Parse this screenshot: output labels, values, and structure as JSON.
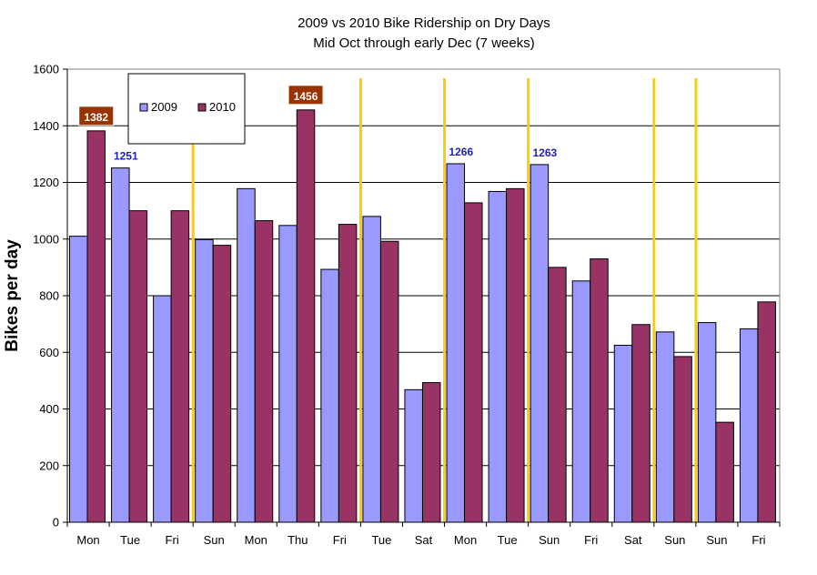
{
  "chart_data": {
    "type": "bar",
    "title": "2009 vs 2010 Bike Ridership on Dry Days",
    "subtitle": "Mid Oct through early Dec (7 weeks)",
    "xlabel": "",
    "ylabel": "Bikes per day",
    "ylim": [
      0,
      1600
    ],
    "yticks": [
      "0",
      "200",
      "400",
      "600",
      "800",
      "1000",
      "1200",
      "1400",
      "1600"
    ],
    "grid": true,
    "legend_position": "top-left",
    "categories": [
      "Mon",
      "Tue",
      "Fri",
      "Sun",
      "Mon",
      "Thu",
      "Fri",
      "Tue",
      "Sat",
      "Mon",
      "Tue",
      "Sun",
      "Fri",
      "Sat",
      "Sun",
      "Sun",
      "Fri"
    ],
    "series": [
      {
        "name": "2009",
        "color": "#9999ff",
        "values": [
          1010,
          1251,
          800,
          998,
          1178,
          1048,
          893,
          1080,
          468,
          1266,
          1168,
          1263,
          852,
          625,
          672,
          705,
          683
        ]
      },
      {
        "name": "2010",
        "color": "#993366",
        "values": [
          1382,
          1100,
          1100,
          978,
          1065,
          1456,
          1052,
          992,
          493,
          1128,
          1178,
          900,
          930,
          698,
          585,
          353,
          778
        ]
      }
    ],
    "week_separators_after_index": [
      2,
      6,
      8,
      10,
      13,
      14
    ],
    "separator_color": "#ffcc00",
    "annotations": [
      {
        "text": "1382",
        "category_index": 0,
        "series": 1,
        "style": "box",
        "box_color": "#993300"
      },
      {
        "text": "1251",
        "category_index": 1,
        "series": 0,
        "style": "text",
        "text_color": "#1f1fb4"
      },
      {
        "text": "1456",
        "category_index": 5,
        "series": 1,
        "style": "box",
        "box_color": "#993300"
      },
      {
        "text": "1266",
        "category_index": 9,
        "series": 0,
        "style": "text",
        "text_color": "#1f1fb4"
      },
      {
        "text": "1263",
        "category_index": 11,
        "series": 0,
        "style": "text",
        "text_color": "#1f1fb4"
      }
    ]
  }
}
